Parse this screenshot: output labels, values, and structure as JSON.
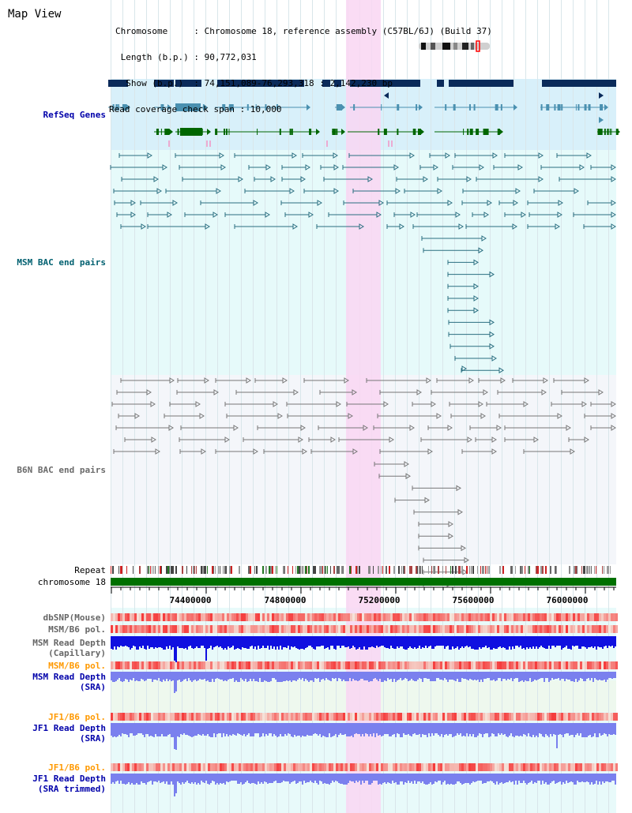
{
  "view": {
    "title": "Map View",
    "header": [
      "Chromosome     : Chromosome 18, reference assembly (C57BL/6J) (Build 37)",
      " Length (b.p.) : 90,772,031",
      "  Show (b.p.)  : 74,151,089-76,293,318 : 2,142,230 bp",
      "Read coverage check span : 10,000"
    ]
  },
  "tracks": [
    {
      "key": "refseq",
      "label": "RefSeq Genes",
      "color": "#0000aa"
    },
    {
      "key": "msm_bac",
      "label": "MSM BAC end pairs",
      "color": "#006070"
    },
    {
      "key": "b6n_bac",
      "label": "B6N BAC end pairs",
      "color": "#6a6a6a"
    },
    {
      "key": "repeat",
      "label": "Repeat",
      "color": "#000000"
    },
    {
      "key": "chrom",
      "label": "chromosome 18",
      "color": "#000000"
    },
    {
      "key": "dbsnp",
      "label": "dbSNP(Mouse)",
      "color": "#666666"
    },
    {
      "key": "msm_pol",
      "label": "MSM/B6 pol.",
      "color": "#666666"
    },
    {
      "key": "msm_depth_cap_1",
      "label": "MSM Read Depth",
      "color": "#666666"
    },
    {
      "key": "msm_depth_cap_2",
      "label": "(Capillary)",
      "color": "#666666"
    },
    {
      "key": "msm_pol2",
      "label": "MSM/B6 pol.",
      "color": "#ff9900"
    },
    {
      "key": "msm_depth_sra_1",
      "label": "MSM Read Depth",
      "color": "#0000aa"
    },
    {
      "key": "msm_depth_sra_2",
      "label": "(SRA)",
      "color": "#0000aa"
    },
    {
      "key": "jf1_pol",
      "label": "JF1/B6 pol.",
      "color": "#ff9900"
    },
    {
      "key": "jf1_depth_1",
      "label": "JF1 Read Depth",
      "color": "#0000aa"
    },
    {
      "key": "jf1_depth_2",
      "label": "(SRA)",
      "color": "#0000aa"
    },
    {
      "key": "jf1_pol2",
      "label": "JF1/B6 pol.",
      "color": "#ff9900"
    },
    {
      "key": "jf1_trim_1",
      "label": "JF1 Read Depth",
      "color": "#0000aa"
    },
    {
      "key": "jf1_trim_2",
      "label": "(SRA trimmed)",
      "color": "#0000aa"
    }
  ],
  "axis": {
    "ticks": [
      "74400000",
      "74800000",
      "75200000",
      "75600000",
      "76000000"
    ]
  },
  "colors": {
    "highlight": "#f9d6f2",
    "refseq_bg": "#d8f0fa",
    "msm_bg": "#e6fafa",
    "b6n_bg": "#f4f6fa",
    "gene_dark": "#0a2a5a",
    "gene_mid": "#4a90b0",
    "gene_green": "#006600",
    "msm_bac": "#2a6e80",
    "b6n_bac": "#777777",
    "depth_dark": "#1010e0",
    "depth_light": "#7a80ee",
    "pol_red": "#f04040",
    "chrom_green": "#007000"
  }
}
